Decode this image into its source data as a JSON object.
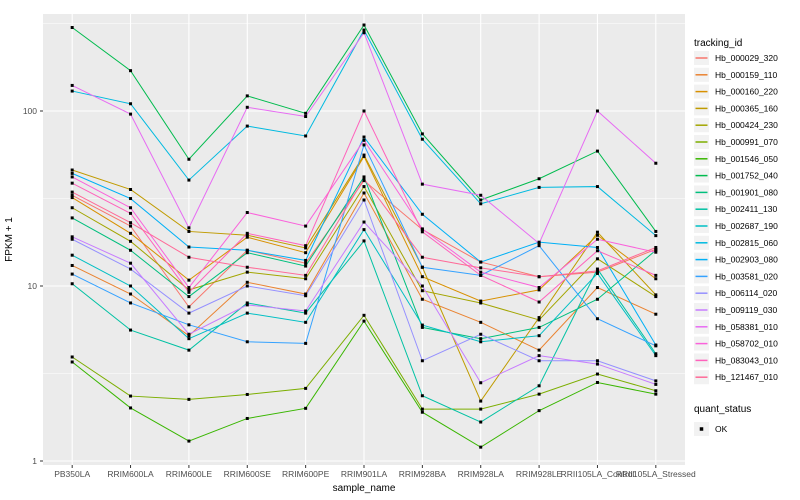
{
  "chart_data": {
    "type": "line",
    "title": "",
    "xlabel": "sample_name",
    "ylabel": "FPKM + 1",
    "y_scale": "log10",
    "y_tick_labels": [
      "1",
      "10",
      "100"
    ],
    "y_tick_values": [
      1,
      10,
      100
    ],
    "y_minor_values": [
      3.1623,
      31.623,
      316.23
    ],
    "ylim": [
      0.95,
      360
    ],
    "grid": "on",
    "legend_position": "right",
    "panel_bg": "#EBEBEB",
    "grid_color": "#FFFFFF",
    "axis_text_color": "#4D4D4D",
    "axis_title_color": "#000000",
    "point_color": "#000000",
    "legend_key_bg": "#F2F2F2",
    "categories": [
      "PB350LA",
      "RRIM600LA",
      "RRIM600LE",
      "RRIM600SE",
      "RRIM600PE",
      "RRIM901LA",
      "RRIM928BA",
      "RRIM928LA",
      "RRIM928LE",
      "RRII105LA_Control",
      "RRII105LA_Stressed"
    ],
    "legend_title": "tracking_id",
    "quant_legend_title": "quant_status",
    "quant_legend_items": [
      "OK"
    ],
    "series": [
      {
        "name": "Hb_000029_320",
        "color": "#F8766D",
        "values": [
          33,
          22,
          7.6,
          16,
          13.5,
          40,
          21,
          13.7,
          11.3,
          12.0,
          16.2
        ]
      },
      {
        "name": "Hb_000159_110",
        "color": "#EA8331",
        "values": [
          13.1,
          9.0,
          5.2,
          10.5,
          9.0,
          34,
          8.4,
          6.2,
          4.3,
          9.8,
          6.9
        ]
      },
      {
        "name": "Hb_000160_220",
        "color": "#D89000",
        "values": [
          32,
          20,
          10.8,
          19,
          15.5,
          55,
          11.3,
          8.2,
          9.5,
          19.5,
          11.0
        ]
      },
      {
        "name": "Hb_000365_160",
        "color": "#C09B00",
        "values": [
          46,
          35.6,
          20.5,
          19.5,
          16.5,
          56,
          12.8,
          2.2,
          6.6,
          20.3,
          8.9
        ]
      },
      {
        "name": "Hb_000424_230",
        "color": "#A3A500",
        "values": [
          28,
          18,
          9.5,
          12,
          11,
          37,
          9.4,
          8.0,
          6.4,
          14.3,
          8.7
        ]
      },
      {
        "name": "Hb_000991_070",
        "color": "#7CAE00",
        "values": [
          3.93,
          2.35,
          2.25,
          2.4,
          2.6,
          6.8,
          1.98,
          1.98,
          2.41,
          3.14,
          2.52
        ]
      },
      {
        "name": "Hb_001546_050",
        "color": "#39B600",
        "values": [
          3.68,
          2.01,
          1.3,
          1.75,
          2.0,
          6.3,
          1.9,
          1.2,
          1.94,
          2.81,
          2.41
        ]
      },
      {
        "name": "Hb_001752_040",
        "color": "#00BB4E",
        "values": [
          300,
          170,
          53,
          122,
          97,
          310,
          74,
          31,
          41,
          59,
          20.5
        ]
      },
      {
        "name": "Hb_001901_080",
        "color": "#00BF7D",
        "values": [
          24.5,
          16,
          8.7,
          15.5,
          13,
          42,
          5.8,
          5.0,
          5.8,
          8.4,
          16
        ]
      },
      {
        "name": "Hb_002411_130",
        "color": "#00C1A3",
        "values": [
          10.3,
          5.6,
          4.3,
          8.0,
          7.0,
          18.1,
          2.36,
          1.67,
          2.69,
          12.5,
          4.1
        ]
      },
      {
        "name": "Hb_002687_190",
        "color": "#00BFC4",
        "values": [
          15,
          10,
          5.0,
          7.0,
          6.2,
          21,
          5.98,
          4.8,
          5.2,
          11.8,
          4.0
        ]
      },
      {
        "name": "Hb_002815_060",
        "color": "#00BAE0",
        "values": [
          130,
          110,
          40.3,
          82,
          72,
          290,
          69,
          29.5,
          36.6,
          37,
          19.4
        ]
      },
      {
        "name": "Hb_002903_080",
        "color": "#00B0F6",
        "values": [
          44,
          31.6,
          16.7,
          16,
          14,
          71,
          25.7,
          13.7,
          17.8,
          16.6,
          4.6
        ]
      },
      {
        "name": "Hb_003581_020",
        "color": "#35A2FF",
        "values": [
          11.7,
          8.0,
          6.0,
          4.8,
          4.7,
          64,
          12.8,
          11.5,
          17.0,
          6.5,
          4.55
        ]
      },
      {
        "name": "Hb_006114_020",
        "color": "#9590FF",
        "values": [
          18.5,
          12.5,
          7.0,
          10.0,
          8.8,
          31,
          3.74,
          5.3,
          3.74,
          3.74,
          2.87
        ]
      },
      {
        "name": "Hb_009119_030",
        "color": "#C77CFF",
        "values": [
          19.1,
          13.5,
          5.3,
          7.8,
          7.2,
          23.2,
          10.0,
          2.8,
          4.0,
          3.58,
          2.74
        ]
      },
      {
        "name": "Hb_058381_010",
        "color": "#E76BF3",
        "values": [
          140,
          96,
          21.5,
          105,
          93,
          280,
          38.2,
          33,
          17.5,
          100,
          50.3
        ]
      },
      {
        "name": "Hb_058702_010",
        "color": "#FA62DB",
        "values": [
          42,
          28,
          9.8,
          26.3,
          22,
          68,
          21.2,
          12.0,
          9.8,
          18.5,
          15.6
        ]
      },
      {
        "name": "Hb_083043_010",
        "color": "#FF62BC",
        "values": [
          38.7,
          26,
          9.2,
          20,
          17,
          100,
          20.4,
          11.5,
          8.1,
          15.9,
          11.5
        ]
      },
      {
        "name": "Hb_121467_010",
        "color": "#FF6A98",
        "values": [
          34.4,
          23,
          14.6,
          12.8,
          11.5,
          41,
          14.6,
          12.7,
          11.3,
          12.2,
          16.6
        ]
      }
    ]
  }
}
